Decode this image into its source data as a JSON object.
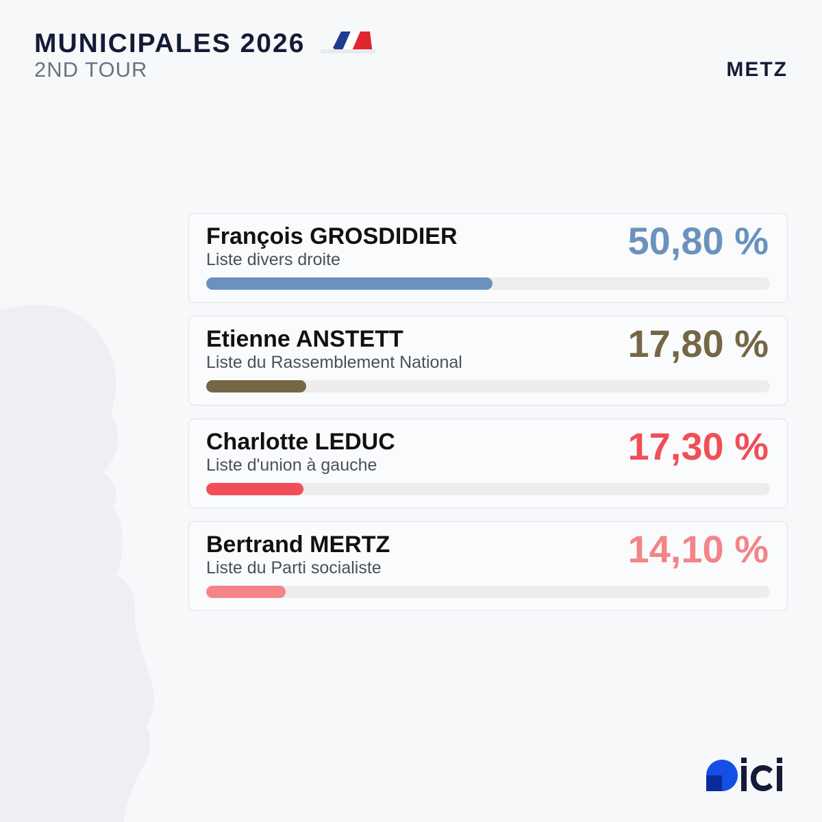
{
  "header": {
    "title": "MUNICIPALES 2026",
    "subtitle": "2ND TOUR",
    "city": "METZ"
  },
  "flag_colors": {
    "blue": "#1f3b8f",
    "white": "#ffffff",
    "red": "#e1262d"
  },
  "chart_data": {
    "type": "bar",
    "orientation": "horizontal",
    "title": "MUNICIPALES 2026",
    "subtitle": "2ND TOUR",
    "xlim": [
      0,
      100
    ],
    "unit": "%",
    "categories": [
      "François GROSDIDIER",
      "Etienne ANSTETT",
      "Charlotte LEDUC",
      "Bertrand MERTZ"
    ],
    "values": [
      50.8,
      17.8,
      17.3,
      14.1
    ],
    "candidates": [
      {
        "name": "François GROSDIDIER",
        "list": "Liste divers droite",
        "value": 50.8,
        "label": "50,80 %",
        "color": "#6a92bd"
      },
      {
        "name": "Etienne ANSTETT",
        "list": "Liste du Rassemblement National",
        "value": 17.8,
        "label": "17,80 %",
        "color": "#756746"
      },
      {
        "name": "Charlotte LEDUC",
        "list": "Liste d'union à gauche",
        "value": 17.3,
        "label": "17,30 %",
        "color": "#f14e57"
      },
      {
        "name": "Bertrand MERTZ",
        "list": "Liste du Parti socialiste",
        "value": 14.1,
        "label": "14,10 %",
        "color": "#f48487"
      }
    ],
    "grid": false,
    "legend": "none"
  },
  "logo": {
    "text": "ici",
    "colors": {
      "text": "#141b36",
      "accent": "#1450e6",
      "dark": "#0b2a9e"
    }
  }
}
